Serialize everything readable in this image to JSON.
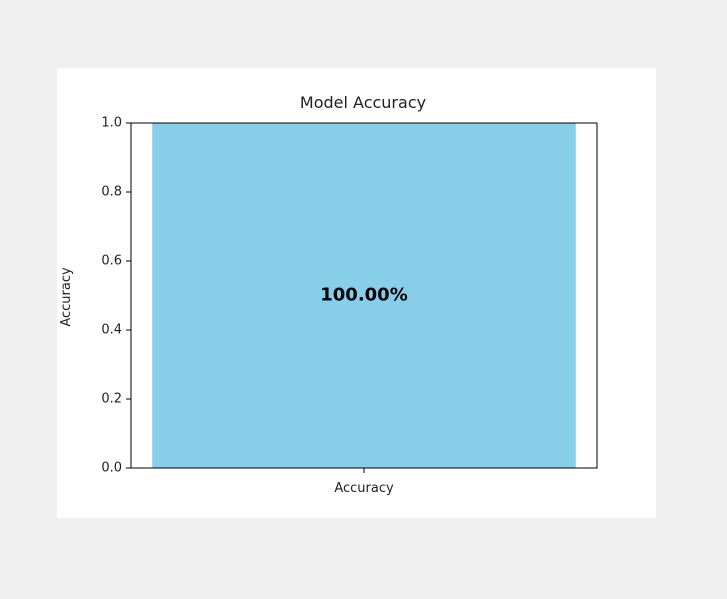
{
  "chart_data": {
    "type": "bar",
    "title": "Model Accuracy",
    "xlabel": "",
    "ylabel": "Accuracy",
    "categories": [
      "Accuracy"
    ],
    "values": [
      1.0
    ],
    "ylim": [
      0.0,
      1.0
    ],
    "yticks": [
      "0.0",
      "0.2",
      "0.4",
      "0.6",
      "0.8",
      "1.0"
    ],
    "bar_labels": [
      "100.00%"
    ],
    "grid": false,
    "colors": {
      "bar": "#87ceeb",
      "axes": "#000000",
      "figure_background": "#ffffff",
      "page_background": "#f0f0f0"
    }
  }
}
